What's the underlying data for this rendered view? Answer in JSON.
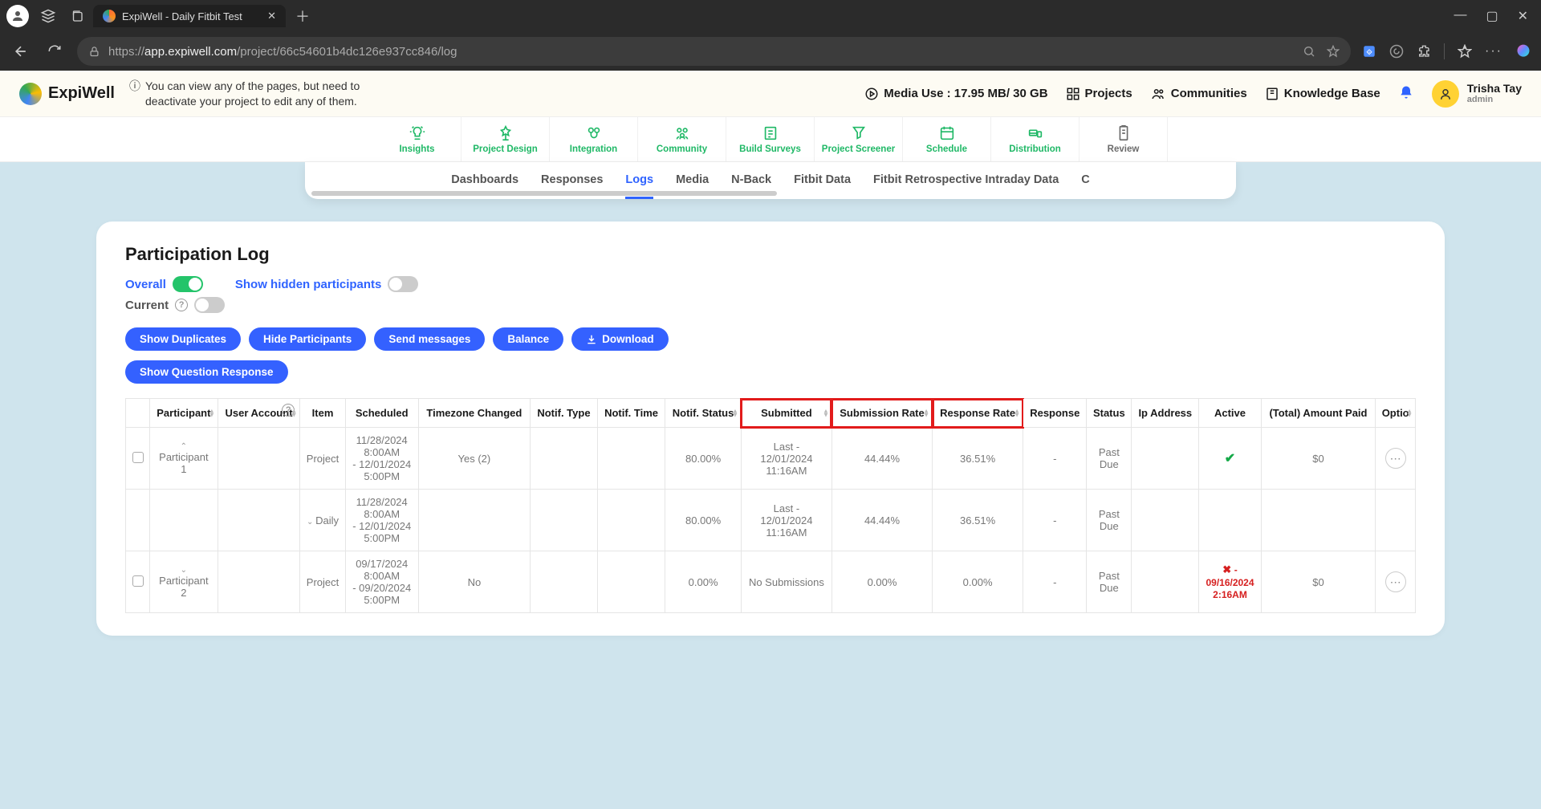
{
  "browser": {
    "tab_title": "ExpiWell - Daily Fitbit Test",
    "url_host": "app.expiwell.com",
    "url_path": "/project/66c54601b4dc126e937cc846/log",
    "url_prefix": "https://"
  },
  "topbar": {
    "brand": "ExpiWell",
    "info_note": "You can view any of the pages, but need to deactivate your project to edit any of them.",
    "media_use": "Media Use : 17.95 MB/ 30 GB",
    "projects": "Projects",
    "communities": "Communities",
    "knowledge_base": "Knowledge Base",
    "user_name": "Trisha Tay",
    "user_role": "admin"
  },
  "phases": [
    {
      "label": "Insights",
      "state": "green"
    },
    {
      "label": "Project Design",
      "state": "green"
    },
    {
      "label": "Integration",
      "state": "green"
    },
    {
      "label": "Community",
      "state": "green"
    },
    {
      "label": "Build Surveys",
      "state": "green"
    },
    {
      "label": "Project Screener",
      "state": "green"
    },
    {
      "label": "Schedule",
      "state": "green"
    },
    {
      "label": "Distribution",
      "state": "green"
    },
    {
      "label": "Review",
      "state": "grey"
    }
  ],
  "subtabs": [
    "Dashboards",
    "Responses",
    "Logs",
    "Media",
    "N-Back",
    "Fitbit Data",
    "Fitbit Retrospective Intraday Data",
    "C"
  ],
  "active_subtab": "Logs",
  "card": {
    "title": "Participation Log",
    "overall": "Overall",
    "current": "Current",
    "show_hidden": "Show hidden participants"
  },
  "buttons": {
    "show_dup": "Show Duplicates",
    "hide_part": "Hide Participants",
    "send_msg": "Send messages",
    "balance": "Balance",
    "download": "Download",
    "show_qr": "Show Question Response"
  },
  "columns": [
    "",
    "Participant",
    "User Account",
    "Item",
    "Scheduled",
    "Timezone Changed",
    "Notif. Type",
    "Notif. Time",
    "Notif. Status",
    "Submitted",
    "Submission Rate",
    "Response Rate",
    "Response",
    "Status",
    "Ip Address",
    "Active",
    "(Total) Amount Paid",
    "Optio"
  ],
  "highlight_cols": [
    9,
    10,
    11
  ],
  "rows": [
    {
      "chk": true,
      "participant_caret": "^",
      "participant": "Participant 1",
      "user_account": "",
      "item": "Project",
      "scheduled": "11/28/2024 8:00AM - 12/01/2024 5:00PM",
      "tz": "Yes (2)",
      "ntype": "",
      "ntime": "",
      "nstatus": "80.00%",
      "submitted": "Last - 12/01/2024 11:16AM",
      "subrate": "44.44%",
      "resprate": "36.51%",
      "response": "-",
      "status": "Past Due",
      "ip": "",
      "active_type": "check",
      "active_text": "",
      "amount": "$0",
      "more": true
    },
    {
      "chk": false,
      "participant_caret": "",
      "participant": "",
      "user_account": "",
      "item_caret": "v",
      "item": "Daily",
      "scheduled": "11/28/2024 8:00AM - 12/01/2024 5:00PM",
      "tz": "",
      "ntype": "",
      "ntime": "",
      "nstatus": "80.00%",
      "submitted": "Last - 12/01/2024 11:16AM",
      "subrate": "44.44%",
      "resprate": "36.51%",
      "response": "-",
      "status": "Past Due",
      "ip": "",
      "active_type": "",
      "active_text": "",
      "amount": "",
      "more": false
    },
    {
      "chk": true,
      "participant_caret": "v",
      "participant": "Participant 2",
      "user_account": "",
      "item": "Project",
      "scheduled": "09/17/2024 8:00AM - 09/20/2024 5:00PM",
      "tz": "No",
      "ntype": "",
      "ntime": "",
      "nstatus": "0.00%",
      "submitted": "No Submissions",
      "subrate": "0.00%",
      "resprate": "0.00%",
      "response": "-",
      "status": "Past Due",
      "ip": "",
      "active_type": "x",
      "active_text": "09/16/2024 2:16AM",
      "amount": "$0",
      "more": true
    }
  ]
}
